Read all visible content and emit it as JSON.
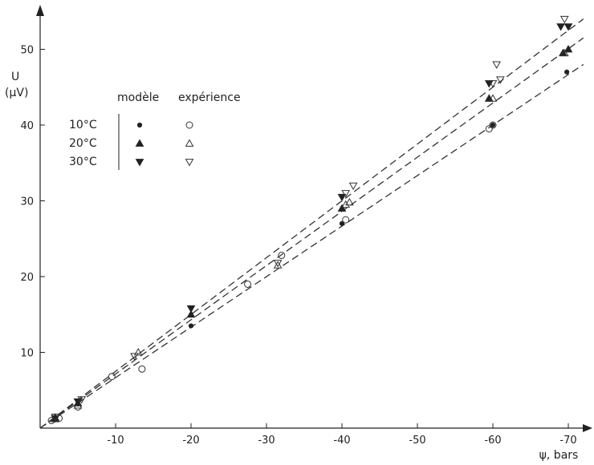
{
  "chart_data": {
    "type": "scatter",
    "xlabel": "ψ, bars",
    "ylabel_line1": "U",
    "ylabel_line2": "(µV)",
    "xlim": [
      0,
      -72
    ],
    "ylim": [
      0,
      55
    ],
    "x_ticks": [
      -10,
      -20,
      -30,
      -40,
      -50,
      -60,
      -70
    ],
    "y_ticks": [
      10,
      20,
      30,
      40,
      50
    ],
    "legend": {
      "header_model": "modèle",
      "header_experiment": "expérience",
      "rows": [
        "10°C",
        "20°C",
        "30°C"
      ]
    },
    "series": [
      {
        "name": "10°C",
        "marker_model": "filled-circle",
        "marker_experiment": "open-circle",
        "fit_line": [
          [
            0,
            0
          ],
          [
            -72,
            48
          ]
        ],
        "model": [
          [
            -2,
            1.2
          ],
          [
            -5,
            3.2
          ],
          [
            -20,
            13.5
          ],
          [
            -40,
            27
          ],
          [
            -60,
            40
          ],
          [
            -69.8,
            47
          ]
        ],
        "experiment": [
          [
            -1.5,
            1
          ],
          [
            -2.5,
            1.3
          ],
          [
            -5,
            2.8
          ],
          [
            -9.5,
            6.8
          ],
          [
            -13.5,
            7.8
          ],
          [
            -27.5,
            19
          ],
          [
            -32,
            22.8
          ],
          [
            -40.5,
            27.5
          ],
          [
            -59.5,
            39.5
          ],
          [
            -60,
            40
          ]
        ]
      },
      {
        "name": "20°C",
        "marker_model": "filled-triangle-up",
        "marker_experiment": "open-triangle-up",
        "fit_line": [
          [
            0,
            0
          ],
          [
            -72,
            51.5
          ]
        ],
        "model": [
          [
            -2,
            1.2
          ],
          [
            -5,
            3.3
          ],
          [
            -20,
            15
          ],
          [
            -40,
            29
          ],
          [
            -59.5,
            43.5
          ],
          [
            -69.3,
            49.5
          ],
          [
            -70,
            50
          ]
        ],
        "experiment": [
          [
            -2,
            1.4
          ],
          [
            -5,
            3
          ],
          [
            -13,
            10
          ],
          [
            -31.5,
            21.5
          ],
          [
            -40.5,
            29.5
          ],
          [
            -41,
            29.8
          ],
          [
            -59.5,
            43.5
          ],
          [
            -60,
            43.5
          ],
          [
            -69.5,
            49.5
          ]
        ]
      },
      {
        "name": "30°C",
        "marker_model": "filled-triangle-down",
        "marker_experiment": "open-triangle-down",
        "fit_line": [
          [
            0,
            0
          ],
          [
            -72,
            54
          ]
        ],
        "model": [
          [
            -2,
            1.3
          ],
          [
            -5,
            3.5
          ],
          [
            -20,
            15.8
          ],
          [
            -40,
            30.5
          ],
          [
            -59.5,
            45.5
          ],
          [
            -69,
            53
          ],
          [
            -70,
            53
          ]
        ],
        "experiment": [
          [
            -2,
            1.5
          ],
          [
            -5.5,
            3.8
          ],
          [
            -12.5,
            9.5
          ],
          [
            -31.5,
            21.8
          ],
          [
            -40.5,
            31
          ],
          [
            -41.5,
            32
          ],
          [
            -60,
            45.5
          ],
          [
            -60.5,
            48
          ],
          [
            -61,
            46
          ],
          [
            -69.5,
            54
          ]
        ]
      }
    ]
  }
}
